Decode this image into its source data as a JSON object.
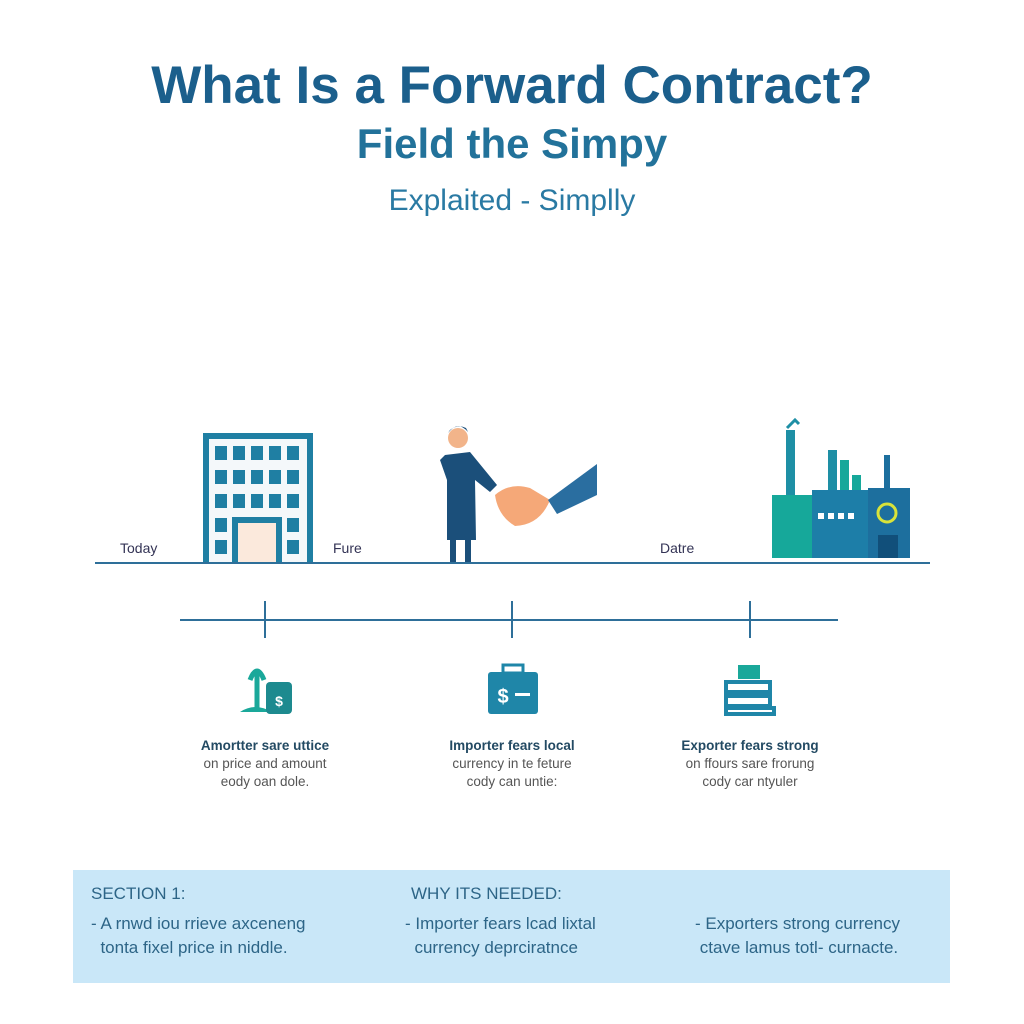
{
  "title": "What Is a Forward Contract?",
  "subtitle": "Field the Simpy",
  "tagline": "Explaited - Simplly",
  "timeline": {
    "labels": [
      "Today",
      "Fure",
      "Datre"
    ]
  },
  "steps": [
    {
      "icon": "crops-and-coins-icon",
      "title": "Amortter sare uttice",
      "line2": "on price and amount",
      "line3": "eody oan dole."
    },
    {
      "icon": "cash-briefcase-icon",
      "title": "Importer fears local",
      "line2": "currency in te feture",
      "line3": "cody can untie:"
    },
    {
      "icon": "stacked-goods-icon",
      "title": "Exporter fears strong",
      "line2": "on ffours sare frorung",
      "line3": "cody car ntyuler"
    }
  ],
  "info_box": {
    "section_label": "SECTION 1:",
    "why_label": "WHY ITS NEEDED:",
    "col1": [
      "- A rnwd iou rrieve axceneng",
      "tonta fixel price in niddle."
    ],
    "col2": [
      "- Importer fears lcad lixtal",
      "currency deprciratnce"
    ],
    "col3": [
      "- Exporters strong currency",
      "ctave lamus totl- curnacte."
    ]
  },
  "colors": {
    "primary": "#1b5f8c",
    "accent": "#1e8aa0",
    "teal": "#1aa89a",
    "box": "#c9e7f8"
  }
}
